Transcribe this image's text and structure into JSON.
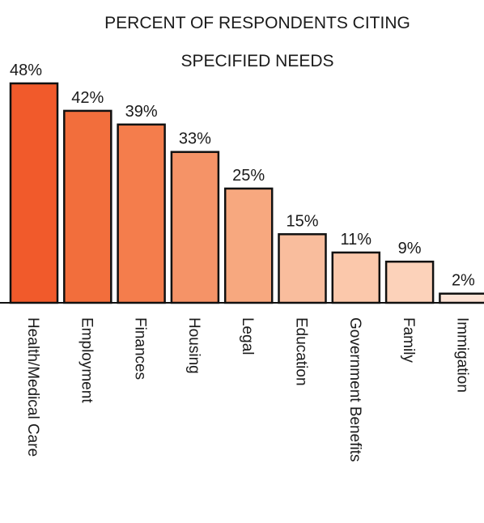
{
  "chart_data": {
    "type": "bar",
    "title": "PERCENT OF RESPONDENTS CITING SPECIFIED NEEDS",
    "title_lines": [
      "PERCENT OF RESPONDENTS CITING",
      "SPECIFIED NEEDS"
    ],
    "categories": [
      "Health/Medical Care",
      "Employment",
      "Finances",
      "Housing",
      "Legal",
      "Education",
      "Government Benefits",
      "Family",
      "Immigation"
    ],
    "values": [
      48,
      42,
      39,
      33,
      25,
      15,
      11,
      9,
      2
    ],
    "value_labels": [
      "48%",
      "42%",
      "39%",
      "33%",
      "25%",
      "15%",
      "11%",
      "9%",
      "2%"
    ],
    "colors": [
      "#f15a2b",
      "#f26e3c",
      "#f47d4c",
      "#f59367",
      "#f7a87f",
      "#f9bd9d",
      "#fbc8ab",
      "#fcd2ba",
      "#fde3d5"
    ],
    "bar_outline_color": "#111111",
    "xlabel": "",
    "ylabel": "",
    "ylim": [
      0,
      48
    ],
    "grid": false,
    "legend": "none"
  }
}
